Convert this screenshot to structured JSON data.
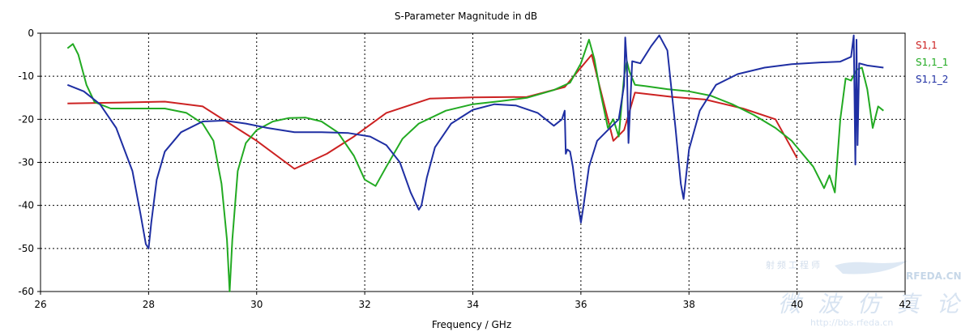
{
  "chart_data": {
    "type": "line",
    "title": "S-Parameter Magnitude in dB",
    "xlabel": "Frequency / GHz",
    "ylabel": "",
    "xlim": [
      26,
      42
    ],
    "ylim": [
      -60,
      0
    ],
    "x_ticks": [
      "26",
      "28",
      "30",
      "32",
      "34",
      "36",
      "38",
      "40",
      "42"
    ],
    "y_ticks": [
      "0",
      "-10",
      "-20",
      "-30",
      "-40",
      "-50",
      "-60"
    ],
    "grid": true,
    "legend_position": "right",
    "series": [
      {
        "name": "S1,1",
        "color": "#cc2222",
        "x": [
          26.5,
          27.5,
          28.3,
          29.0,
          29.5,
          30.0,
          30.7,
          31.3,
          31.8,
          32.4,
          33.2,
          34.0,
          35.0,
          35.7,
          36.2,
          36.6,
          36.8,
          37.0,
          37.7,
          38.3,
          39.0,
          39.6,
          40.0
        ],
        "values": [
          -16.3,
          -16.1,
          -15.9,
          -17.0,
          -21.0,
          -25.0,
          -31.5,
          -28.0,
          -24.0,
          -18.5,
          -15.2,
          -14.9,
          -14.8,
          -12.5,
          -5.0,
          -25.0,
          -22.5,
          -13.8,
          -14.8,
          -15.4,
          -17.5,
          -20.0,
          -29.0
        ]
      },
      {
        "name": "S1,1_1",
        "color": "#22aa22",
        "x": [
          26.5,
          26.6,
          26.7,
          26.85,
          27.0,
          27.3,
          27.7,
          28.0,
          28.3,
          28.7,
          29.0,
          29.2,
          29.35,
          29.45,
          29.5,
          29.55,
          29.65,
          29.8,
          30.0,
          30.3,
          30.6,
          30.9,
          31.2,
          31.5,
          31.8,
          32.0,
          32.2,
          32.4,
          32.7,
          33.0,
          33.5,
          34.0,
          34.5,
          35.0,
          35.5,
          35.8,
          36.0,
          36.15,
          36.25,
          36.35,
          36.5,
          36.6,
          36.7,
          36.8,
          36.85,
          36.9,
          37.0,
          37.2,
          37.6,
          38.0,
          38.4,
          38.8,
          39.2,
          39.6,
          39.9,
          40.1,
          40.3,
          40.5,
          40.6,
          40.7,
          40.8,
          40.9,
          41.0,
          41.1,
          41.2,
          41.3,
          41.4,
          41.5,
          41.6
        ],
        "values": [
          -3.5,
          -2.5,
          -5.0,
          -12.0,
          -16.0,
          -17.5,
          -17.5,
          -17.5,
          -17.5,
          -18.5,
          -21.0,
          -25.0,
          -35.0,
          -48.0,
          -60.0,
          -48.0,
          -32.0,
          -25.5,
          -22.5,
          -20.5,
          -19.7,
          -19.6,
          -20.5,
          -23.0,
          -28.5,
          -34.0,
          -35.5,
          -31.0,
          -24.5,
          -21.0,
          -18.0,
          -16.5,
          -15.8,
          -15.0,
          -13.2,
          -11.5,
          -7.0,
          -1.5,
          -6.0,
          -13.0,
          -22.0,
          -20.0,
          -24.0,
          -10.0,
          -6.5,
          -9.0,
          -12.0,
          -12.3,
          -13.0,
          -13.5,
          -14.5,
          -16.5,
          -19.0,
          -22.0,
          -25.0,
          -28.0,
          -31.0,
          -36.0,
          -33.0,
          -37.0,
          -20.0,
          -10.5,
          -11.0,
          -8.5,
          -8.0,
          -13.0,
          -22.0,
          -17.0,
          -18.0
        ]
      },
      {
        "name": "S1,1_2",
        "color": "#1f2fa3",
        "x": [
          26.5,
          26.8,
          27.1,
          27.4,
          27.7,
          27.85,
          27.95,
          28.0,
          28.05,
          28.15,
          28.3,
          28.6,
          29.0,
          29.4,
          29.8,
          30.2,
          30.7,
          31.2,
          31.7,
          32.1,
          32.4,
          32.65,
          32.85,
          33.0,
          33.05,
          33.15,
          33.3,
          33.6,
          34.0,
          34.4,
          34.8,
          35.2,
          35.5,
          35.65,
          35.7,
          35.72,
          35.75,
          35.8,
          35.85,
          35.9,
          35.95,
          36.0,
          36.05,
          36.15,
          36.3,
          36.5,
          36.7,
          36.8,
          36.82,
          36.85,
          36.88,
          36.95,
          37.1,
          37.3,
          37.45,
          37.6,
          37.75,
          37.85,
          37.9,
          38.0,
          38.2,
          38.5,
          38.9,
          39.4,
          39.9,
          40.4,
          40.8,
          41.0,
          41.05,
          41.08,
          41.1,
          41.12,
          41.15,
          41.3,
          41.6
        ],
        "values": [
          -12.0,
          -13.5,
          -16.5,
          -22.0,
          -32.0,
          -42.0,
          -49.0,
          -50.0,
          -44.0,
          -34.0,
          -27.5,
          -23.0,
          -20.5,
          -20.3,
          -21.0,
          -22.0,
          -23.0,
          -23.0,
          -23.2,
          -24.0,
          -26.0,
          -30.0,
          -37.0,
          -41.0,
          -40.0,
          -33.5,
          -26.5,
          -21.0,
          -17.8,
          -16.5,
          -16.8,
          -18.5,
          -21.5,
          -20.0,
          -18.0,
          -28.0,
          -27.0,
          -27.5,
          -31.0,
          -36.0,
          -40.0,
          -44.0,
          -40.0,
          -31.0,
          -25.0,
          -22.5,
          -20.0,
          -12.0,
          -1.0,
          -7.0,
          -25.5,
          -6.5,
          -7.0,
          -3.0,
          -0.5,
          -4.0,
          -22.0,
          -35.0,
          -38.5,
          -27.0,
          -18.0,
          -12.0,
          -9.5,
          -8.0,
          -7.2,
          -6.8,
          -6.6,
          -5.5,
          -0.5,
          -30.5,
          -1.5,
          -26.0,
          -7.0,
          -7.5,
          -8.0
        ]
      }
    ],
    "watermark": {
      "brand": "RFEDA.CN",
      "cn_small": "射频工程师",
      "cn_large": "微 波 仿 真 论 坛",
      "url": "http://bbs.rfeda.cn"
    }
  }
}
